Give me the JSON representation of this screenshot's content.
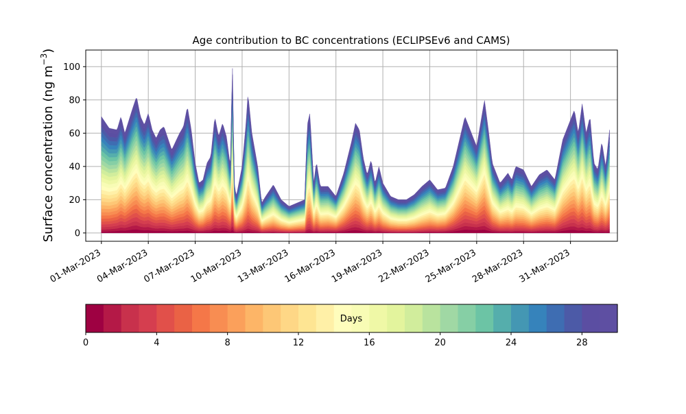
{
  "chart_data": {
    "type": "area",
    "title": "Age contribution to BC concentrations (ECLIPSEv6 and CAMS)",
    "ylabel_main": "Surface concentration (ng m",
    "ylabel_sup": "−3",
    "ylabel_close": ")",
    "xlabel": "",
    "x_start": "2023-03-01",
    "x_end": "2023-04-02",
    "xlim": [
      "2023-02-28T00:00",
      "2023-04-03T00:00"
    ],
    "ylim": [
      -5,
      110
    ],
    "yticks": [
      0,
      20,
      40,
      60,
      80,
      100
    ],
    "xtick_labels": [
      "01-Mar-2023",
      "04-Mar-2023",
      "07-Mar-2023",
      "10-Mar-2023",
      "13-Mar-2023",
      "16-Mar-2023",
      "19-Mar-2023",
      "22-Mar-2023",
      "25-Mar-2023",
      "28-Mar-2023",
      "31-Mar-2023"
    ],
    "xtick_dates": [
      "2023-03-01",
      "2023-03-04",
      "2023-03-07",
      "2023-03-10",
      "2023-03-13",
      "2023-03-16",
      "2023-03-19",
      "2023-03-22",
      "2023-03-25",
      "2023-03-28",
      "2023-03-31"
    ],
    "grid": true,
    "colormap": "Spectral",
    "num_age_bins": 30,
    "total_concentration": [
      [
        "2023-03-01",
        70
      ],
      [
        "2023-03-01T12:00",
        63
      ],
      [
        "2023-03-02",
        62
      ],
      [
        "2023-03-02T06:00",
        70
      ],
      [
        "2023-03-02T12:00",
        60
      ],
      [
        "2023-03-03",
        75
      ],
      [
        "2023-03-03T06:00",
        82
      ],
      [
        "2023-03-03T12:00",
        70
      ],
      [
        "2023-03-03T18:00",
        65
      ],
      [
        "2023-03-04",
        72
      ],
      [
        "2023-03-04T06:00",
        62
      ],
      [
        "2023-03-04T12:00",
        57
      ],
      [
        "2023-03-04T18:00",
        62
      ],
      [
        "2023-03-05",
        64
      ],
      [
        "2023-03-05T12:00",
        50
      ],
      [
        "2023-03-05T18:00",
        55
      ],
      [
        "2023-03-06",
        60
      ],
      [
        "2023-03-06T06:00",
        64
      ],
      [
        "2023-03-06T12:00",
        76
      ],
      [
        "2023-03-06T18:00",
        62
      ],
      [
        "2023-03-07",
        42
      ],
      [
        "2023-03-07T06:00",
        30
      ],
      [
        "2023-03-07T12:00",
        32
      ],
      [
        "2023-03-07T18:00",
        42
      ],
      [
        "2023-03-08",
        46
      ],
      [
        "2023-03-08T06:00",
        70
      ],
      [
        "2023-03-08T12:00",
        58
      ],
      [
        "2023-03-08T18:00",
        66
      ],
      [
        "2023-03-09",
        58
      ],
      [
        "2023-03-09T06:00",
        40
      ],
      [
        "2023-03-09T09:00",
        105
      ],
      [
        "2023-03-09T12:00",
        30
      ],
      [
        "2023-03-09T15:00",
        22
      ],
      [
        "2023-03-10",
        40
      ],
      [
        "2023-03-10T06:00",
        66
      ],
      [
        "2023-03-10T09:00",
        84
      ],
      [
        "2023-03-10T15:00",
        60
      ],
      [
        "2023-03-11",
        40
      ],
      [
        "2023-03-11T06:00",
        18
      ],
      [
        "2023-03-11T12:00",
        22
      ],
      [
        "2023-03-12",
        29
      ],
      [
        "2023-03-12T12:00",
        20
      ],
      [
        "2023-03-13",
        16
      ],
      [
        "2023-03-13T12:00",
        18
      ],
      [
        "2023-03-14",
        20
      ],
      [
        "2023-03-14T04:00",
        65
      ],
      [
        "2023-03-14T08:00",
        72
      ],
      [
        "2023-03-14T14:00",
        30
      ],
      [
        "2023-03-14T18:00",
        43
      ],
      [
        "2023-03-15",
        28
      ],
      [
        "2023-03-15T12:00",
        28
      ],
      [
        "2023-03-16",
        22
      ],
      [
        "2023-03-16T12:00",
        36
      ],
      [
        "2023-03-17",
        55
      ],
      [
        "2023-03-17T06:00",
        66
      ],
      [
        "2023-03-17T12:00",
        62
      ],
      [
        "2023-03-17T18:00",
        45
      ],
      [
        "2023-03-18",
        35
      ],
      [
        "2023-03-18T06:00",
        44
      ],
      [
        "2023-03-18T12:00",
        30
      ],
      [
        "2023-03-18T18:00",
        40
      ],
      [
        "2023-03-19",
        30
      ],
      [
        "2023-03-19T12:00",
        22
      ],
      [
        "2023-03-20",
        20
      ],
      [
        "2023-03-20T12:00",
        20
      ],
      [
        "2023-03-21",
        23
      ],
      [
        "2023-03-21T12:00",
        28
      ],
      [
        "2023-03-22",
        32
      ],
      [
        "2023-03-22T12:00",
        26
      ],
      [
        "2023-03-23",
        27
      ],
      [
        "2023-03-23T12:00",
        40
      ],
      [
        "2023-03-24",
        60
      ],
      [
        "2023-03-24T06:00",
        70
      ],
      [
        "2023-03-24T12:00",
        64
      ],
      [
        "2023-03-25",
        52
      ],
      [
        "2023-03-25T12:00",
        80
      ],
      [
        "2023-03-25T18:00",
        62
      ],
      [
        "2023-03-26",
        42
      ],
      [
        "2023-03-26T12:00",
        30
      ],
      [
        "2023-03-27",
        36
      ],
      [
        "2023-03-27T06:00",
        32
      ],
      [
        "2023-03-27T12:00",
        40
      ],
      [
        "2023-03-28",
        38
      ],
      [
        "2023-03-28T12:00",
        28
      ],
      [
        "2023-03-29",
        35
      ],
      [
        "2023-03-29T12:00",
        38
      ],
      [
        "2023-03-30",
        32
      ],
      [
        "2023-03-30T12:00",
        56
      ],
      [
        "2023-03-31",
        68
      ],
      [
        "2023-03-31T06:00",
        74
      ],
      [
        "2023-03-31T12:00",
        60
      ],
      [
        "2023-03-31T18:00",
        78
      ],
      [
        "2023-04-01",
        60
      ],
      [
        "2023-04-01T06:00",
        70
      ],
      [
        "2023-04-01T12:00",
        42
      ],
      [
        "2023-04-01T18:00",
        38
      ],
      [
        "2023-04-02",
        55
      ],
      [
        "2023-04-02T06:00",
        40
      ],
      [
        "2023-04-02T12:00",
        62
      ]
    ],
    "fresh_fraction": [
      [
        "2023-03-01",
        0.3
      ],
      [
        "2023-03-02",
        0.45
      ],
      [
        "2023-03-03",
        0.55
      ],
      [
        "2023-03-04",
        0.5
      ],
      [
        "2023-03-05",
        0.45
      ],
      [
        "2023-03-06",
        0.45
      ],
      [
        "2023-03-07",
        0.4
      ],
      [
        "2023-03-08",
        0.45
      ],
      [
        "2023-03-09",
        0.5
      ],
      [
        "2023-03-10",
        0.35
      ],
      [
        "2023-03-11",
        0.35
      ],
      [
        "2023-03-12",
        0.3
      ],
      [
        "2023-03-13",
        0.3
      ],
      [
        "2023-03-14",
        0.35
      ],
      [
        "2023-03-15",
        0.35
      ],
      [
        "2023-03-16",
        0.45
      ],
      [
        "2023-03-17",
        0.55
      ],
      [
        "2023-03-18",
        0.45
      ],
      [
        "2023-03-19",
        0.35
      ],
      [
        "2023-03-20",
        0.3
      ],
      [
        "2023-03-21",
        0.3
      ],
      [
        "2023-03-22",
        0.35
      ],
      [
        "2023-03-23",
        0.45
      ],
      [
        "2023-03-24",
        0.55
      ],
      [
        "2023-03-25",
        0.6
      ],
      [
        "2023-03-26",
        0.45
      ],
      [
        "2023-03-27",
        0.35
      ],
      [
        "2023-03-28",
        0.35
      ],
      [
        "2023-03-29",
        0.4
      ],
      [
        "2023-03-30",
        0.45
      ],
      [
        "2023-03-31",
        0.55
      ],
      [
        "2023-04-01",
        0.45
      ],
      [
        "2023-04-02",
        0.4
      ]
    ],
    "colorbar": {
      "label": "Days",
      "ticks": [
        0,
        4,
        8,
        12,
        16,
        20,
        24,
        28
      ],
      "range": [
        0,
        30
      ],
      "colors": [
        "#9e0142",
        "#b41947",
        "#c8314c",
        "#d53e4f",
        "#e1504a",
        "#ea6245",
        "#f57748",
        "#f88d52",
        "#fba05b",
        "#fdb567",
        "#fdc776",
        "#fed786",
        "#fee593",
        "#fff0a7",
        "#fffdbc",
        "#f8fcb5",
        "#eff8a6",
        "#e3f49d",
        "#d1ed9c",
        "#b9e39e",
        "#a0d8a4",
        "#86cfa5",
        "#6cc4a5",
        "#55aeac",
        "#4497b3",
        "#3683bb",
        "#3e6db2",
        "#4c5aa7",
        "#5b4ea2",
        "#5e4fa2"
      ]
    }
  }
}
